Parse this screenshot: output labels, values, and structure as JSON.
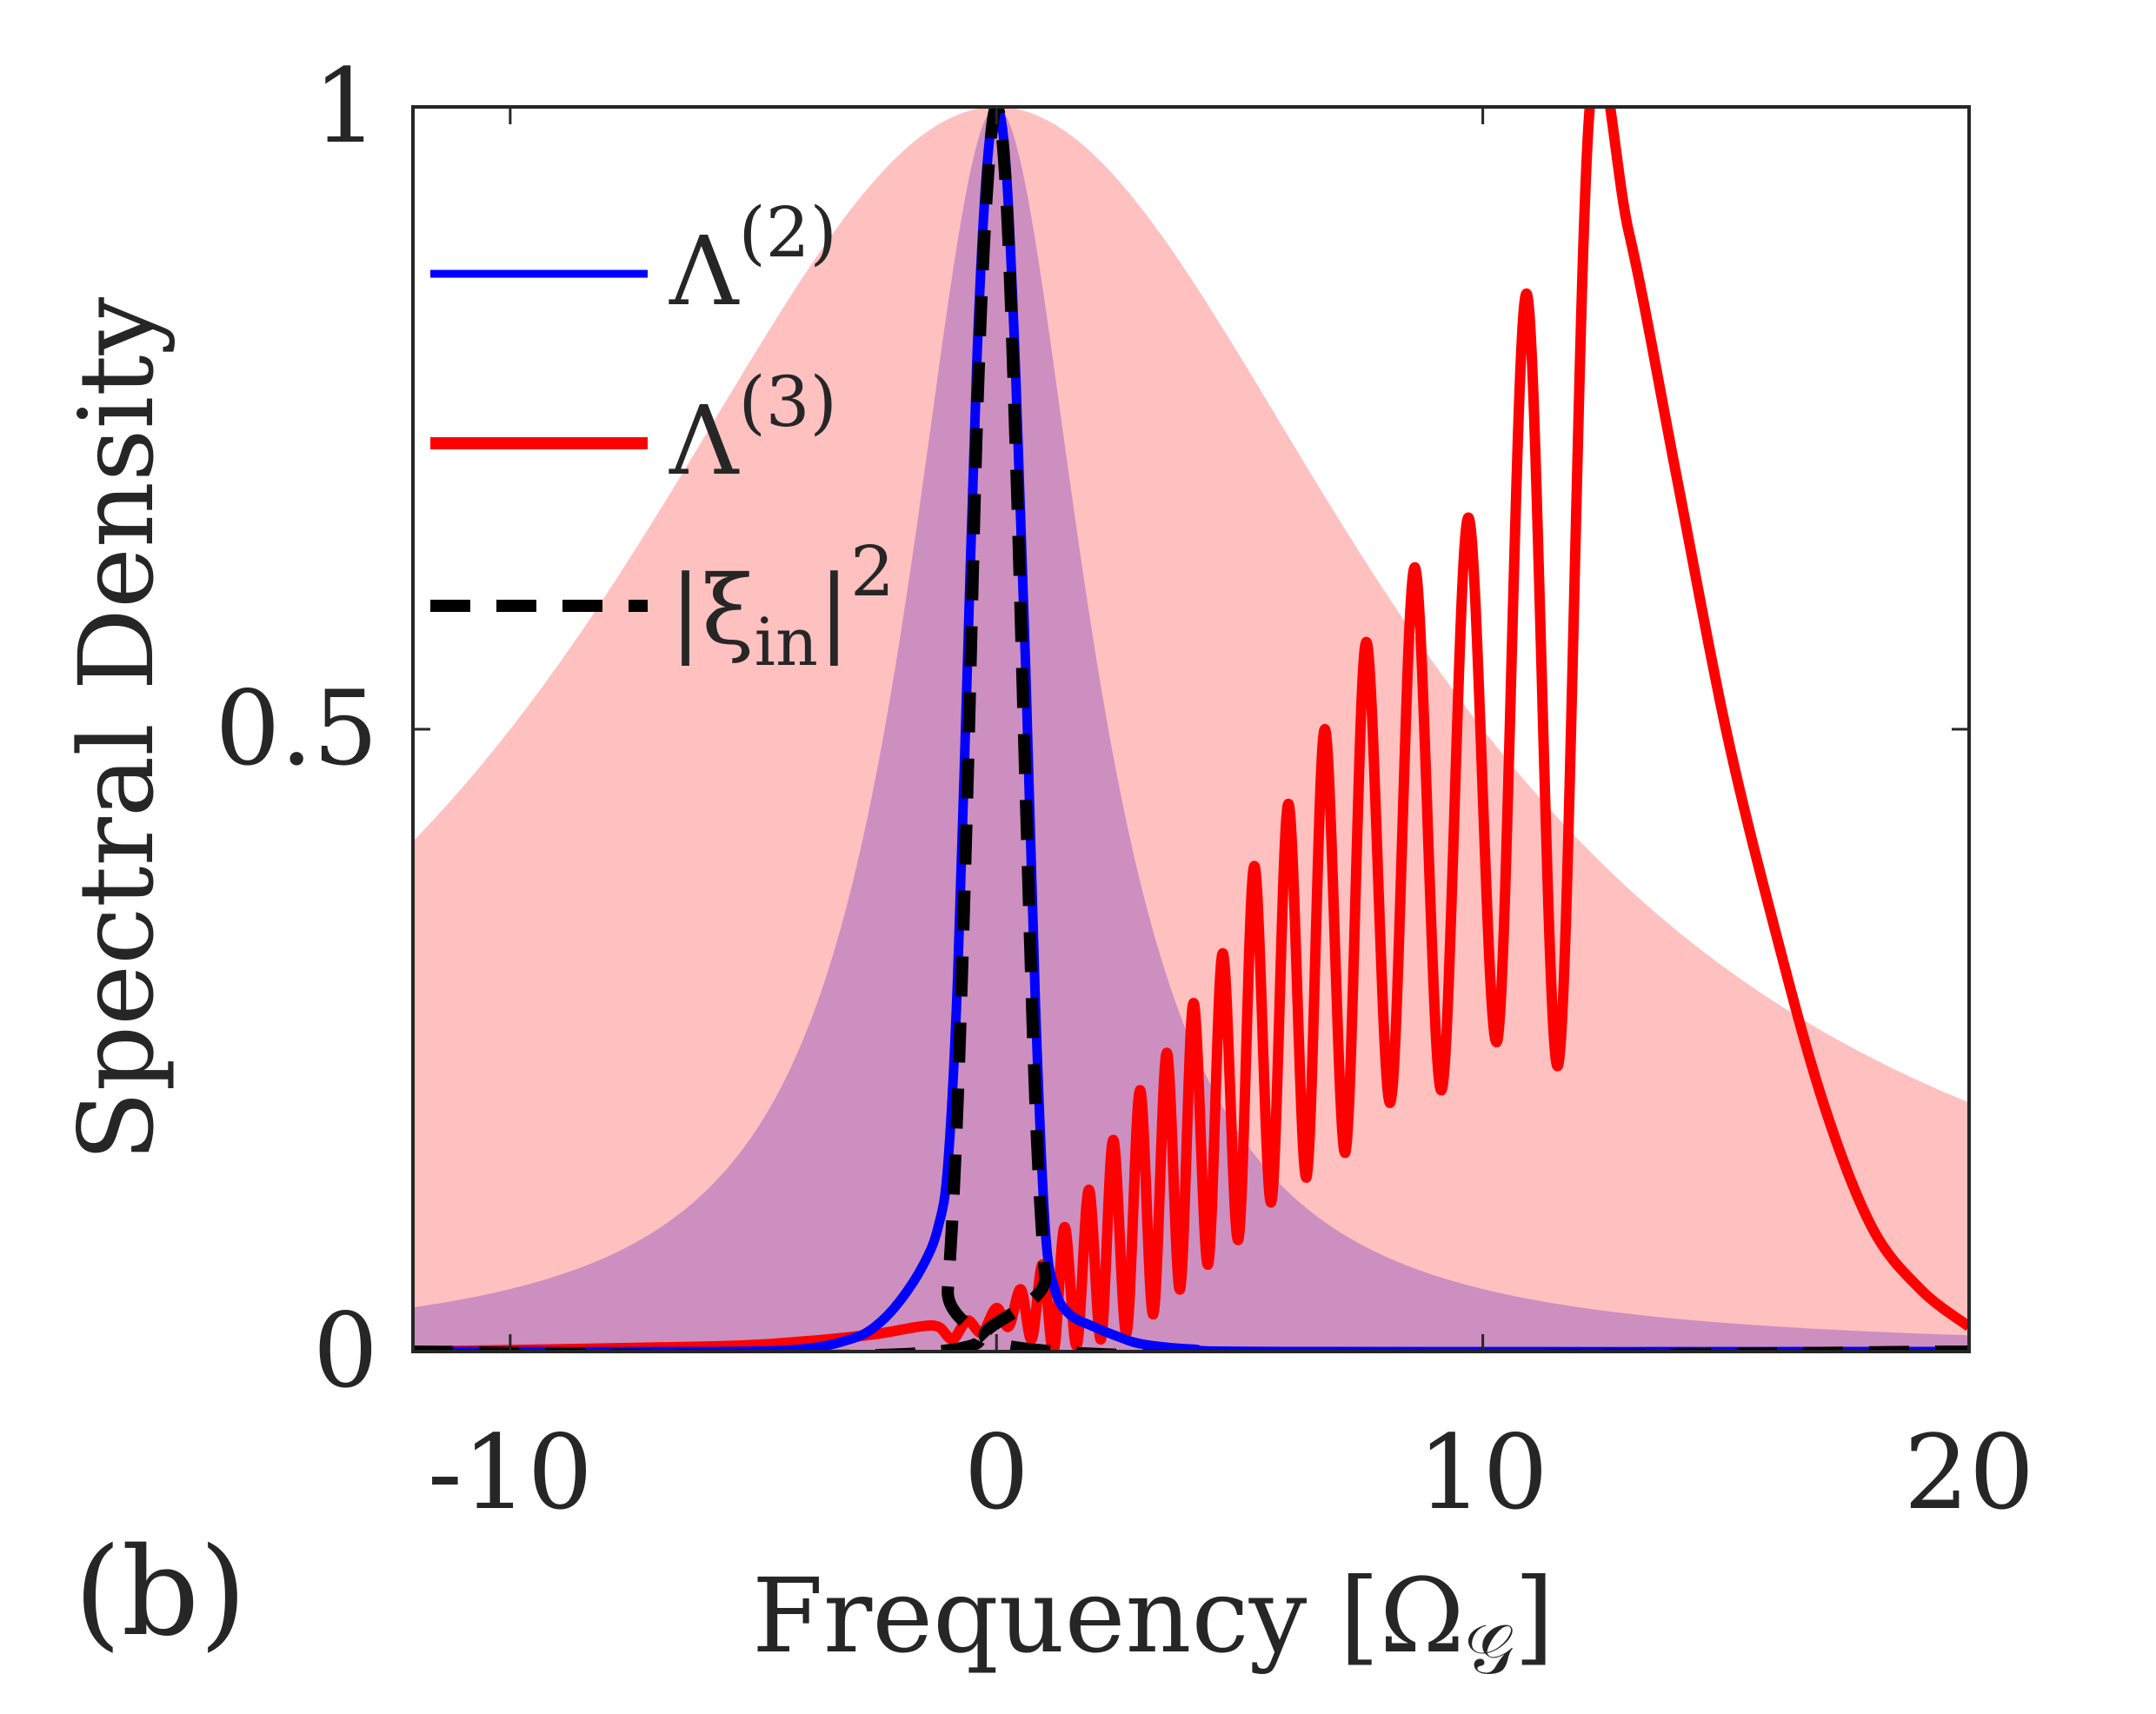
{
  "panel_label": "(b)",
  "chart_data": {
    "type": "line",
    "xlabel": "Frequency [Ω",
    "xlabel_sub": "𝒢",
    "xlabel_close": "]",
    "ylabel": "Spectral Density",
    "xlim": [
      -12,
      20
    ],
    "ylim": [
      0,
      1
    ],
    "xticks": [
      -10,
      0,
      10,
      20
    ],
    "xtick_labels": [
      "-10",
      "0",
      "10",
      "20"
    ],
    "yticks": [
      0,
      0.5,
      1
    ],
    "ytick_labels": [
      "0",
      "0.5",
      "1"
    ],
    "grid": false,
    "legend_position": "top-left",
    "shaded_regions": [
      {
        "description": "broad Lorentzian band",
        "color": "#ffc0c0",
        "center": 0,
        "half_width": 10,
        "peak": 1
      },
      {
        "description": "narrow Lorentzian band",
        "color": "#cc8fbf",
        "center": 0,
        "half_width": 2.3,
        "peak": 1
      }
    ],
    "series": [
      {
        "name": "Λ",
        "name_sup": "(2)",
        "color": "#0000ff",
        "style": "solid",
        "x": [
          -12,
          -6,
          -4,
          -3,
          -2.5,
          -2,
          -1.5,
          -1.2,
          -1.0,
          -0.8,
          -0.6,
          -0.4,
          -0.2,
          0,
          0.2,
          0.4,
          0.6,
          0.8,
          1.0,
          1.2,
          1.5,
          2,
          2.5,
          3,
          4,
          6,
          20
        ],
        "y": [
          0,
          0,
          0.002,
          0.01,
          0.02,
          0.04,
          0.07,
          0.1,
          0.15,
          0.3,
          0.55,
          0.8,
          0.95,
          1.0,
          0.95,
          0.78,
          0.55,
          0.28,
          0.1,
          0.05,
          0.03,
          0.02,
          0.012,
          0.006,
          0.002,
          0,
          0
        ]
      },
      {
        "name": "Λ",
        "name_sup": "(3)",
        "color": "#ff0000",
        "style": "solid",
        "generator": "oscillating",
        "x_range": [
          -12,
          20
        ],
        "peak_x": [
          -1.2,
          -0.6,
          0.0,
          0.5,
          0.95,
          1.4,
          1.9,
          2.4,
          2.95,
          3.5,
          4.05,
          4.65,
          5.3,
          6.0,
          6.75,
          7.6,
          8.6,
          9.7,
          10.9,
          12.2
        ],
        "peak_y": [
          0.02,
          0.025,
          0.035,
          0.05,
          0.07,
          0.1,
          0.13,
          0.17,
          0.21,
          0.24,
          0.28,
          0.32,
          0.39,
          0.44,
          0.5,
          0.57,
          0.63,
          0.67,
          0.85,
          1.0
        ],
        "trough_y": [
          0.01,
          0.015,
          0.02,
          0.01,
          0.0,
          0.005,
          0.01,
          0.015,
          0.03,
          0.05,
          0.07,
          0.09,
          0.12,
          0.14,
          0.16,
          0.2,
          0.21,
          0.25,
          0.23,
          0.2
        ],
        "tail_x": [
          -12,
          -6,
          -4,
          -2.5,
          -1.6
        ],
        "tail_y": [
          0.0,
          0.004,
          0.008,
          0.014,
          0.02
        ],
        "decay_x": [
          12.2,
          13,
          14,
          15,
          16,
          17,
          18,
          19,
          20
        ],
        "decay_y": [
          1.0,
          0.9,
          0.7,
          0.5,
          0.34,
          0.2,
          0.1,
          0.05,
          0.02
        ]
      },
      {
        "name": "|ξ",
        "name_sub": "in",
        "name_close": "|",
        "name_sup": "2",
        "color": "#000000",
        "style": "dashed",
        "x": [
          -12,
          -1.2,
          -1.0,
          -0.8,
          -0.6,
          -0.4,
          -0.2,
          0,
          0.2,
          0.4,
          0.6,
          0.8,
          1.0,
          1.2,
          20
        ],
        "y": [
          0,
          0,
          0.05,
          0.2,
          0.45,
          0.75,
          0.93,
          1.0,
          0.93,
          0.72,
          0.45,
          0.2,
          0.06,
          0,
          0
        ]
      }
    ]
  }
}
